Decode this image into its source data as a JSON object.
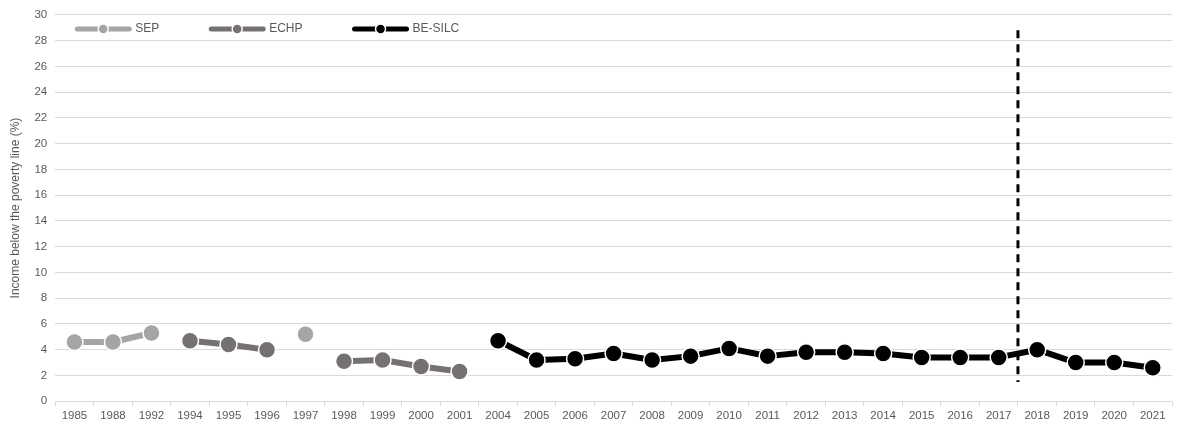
{
  "chart_data": {
    "type": "line",
    "ylabel": "Income below the poverty line (%)",
    "categories": [
      "1985",
      "1988",
      "1992",
      "1994",
      "1995",
      "1996",
      "1997",
      "1998",
      "1999",
      "2000",
      "2001",
      "2004",
      "2005",
      "2006",
      "2007",
      "2008",
      "2009",
      "2010",
      "2011",
      "2012",
      "2013",
      "2014",
      "2015",
      "2016",
      "2017",
      "2018",
      "2019",
      "2020",
      "2021"
    ],
    "series": [
      {
        "name": "SEP",
        "color": "#a5a5a5",
        "values": [
          4.6,
          4.6,
          5.3,
          null,
          null,
          null,
          5.2,
          null,
          null,
          null,
          null,
          null,
          null,
          null,
          null,
          null,
          null,
          null,
          null,
          null,
          null,
          null,
          null,
          null,
          null,
          null,
          null,
          null,
          null
        ]
      },
      {
        "name": "ECHP",
        "color": "#767171",
        "values": [
          null,
          null,
          null,
          4.7,
          4.4,
          4.0,
          null,
          3.1,
          3.2,
          2.7,
          2.3,
          null,
          null,
          null,
          null,
          null,
          null,
          null,
          null,
          null,
          null,
          null,
          null,
          null,
          null,
          null,
          null,
          null,
          null
        ]
      },
      {
        "name": "BE-SILC",
        "color": "#000000",
        "values": [
          null,
          null,
          null,
          null,
          null,
          null,
          null,
          null,
          null,
          null,
          null,
          4.7,
          3.2,
          3.3,
          3.7,
          3.2,
          3.5,
          4.1,
          3.5,
          3.8,
          3.8,
          3.7,
          3.4,
          3.4,
          3.4,
          4.0,
          3.0,
          3.0,
          2.6
        ]
      }
    ],
    "ylim": [
      0,
      30
    ],
    "yticks": [
      0,
      2,
      4,
      6,
      8,
      10,
      12,
      14,
      16,
      18,
      20,
      22,
      24,
      26,
      28,
      30
    ],
    "ref_lines": [
      {
        "axis": "x",
        "value": "2018",
        "color": "#000000",
        "line_style": "dashed"
      }
    ],
    "grid": "y",
    "legend": "top left",
    "marker": "circle",
    "line_style": "solid"
  }
}
